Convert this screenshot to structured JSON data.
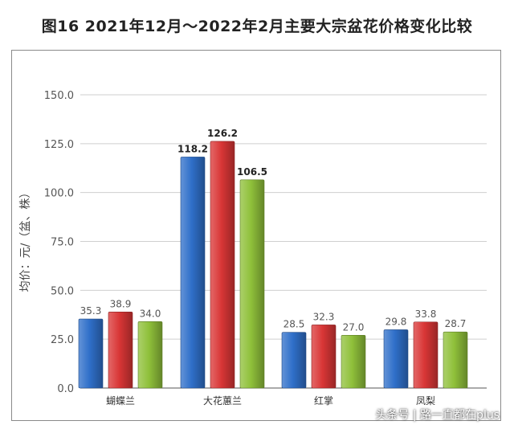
{
  "page": {
    "title": "图16  2021年12月～2022年2月主要大宗盆花价格变化比较",
    "watermark": "头条号 | 路一直都在plus"
  },
  "chart_data": {
    "type": "bar",
    "title": "",
    "xlabel": "",
    "ylabel": "均价：元/（盆、株）",
    "categories": [
      "蝴蝶兰",
      "大花蕙兰",
      "红掌",
      "凤梨"
    ],
    "series": [
      {
        "color": "#2f6fc9",
        "values": [
          35.3,
          118.2,
          28.5,
          29.8
        ]
      },
      {
        "color": "#d93636",
        "values": [
          38.9,
          126.2,
          32.3,
          33.8
        ]
      },
      {
        "color": "#8fc03a",
        "values": [
          34.0,
          106.5,
          27.0,
          28.7
        ]
      }
    ],
    "value_labels": [
      [
        "35.3",
        "118.2",
        "28.5",
        "29.8"
      ],
      [
        "38.9",
        "126.2",
        "32.3",
        "33.8"
      ],
      [
        "34.0",
        "106.5",
        "27.0",
        "28.7"
      ]
    ],
    "ylim": [
      0,
      150
    ],
    "yticks": [
      0,
      25,
      50,
      75,
      100,
      125,
      150
    ],
    "ytick_labels": [
      "0.0",
      "25.0",
      "50.0",
      "75.0",
      "100.0",
      "125.0",
      "150.0"
    ],
    "grid": true,
    "legend": "none"
  }
}
